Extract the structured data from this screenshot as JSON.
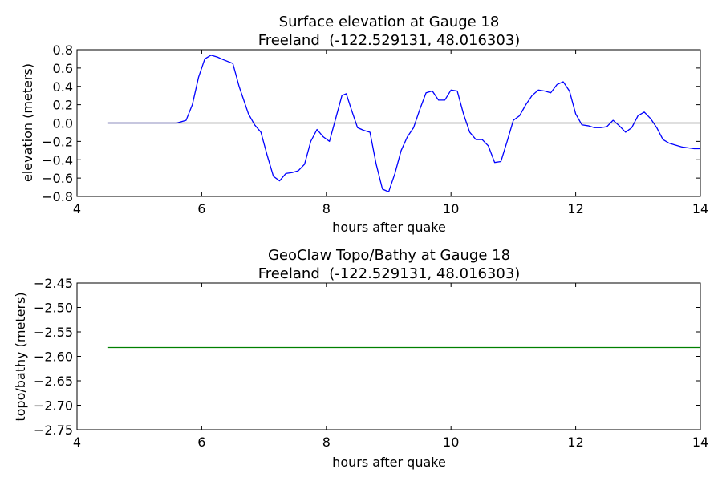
{
  "chart_data": [
    {
      "type": "line",
      "title": "Surface elevation at Gauge 18",
      "subtitle": "Freeland  (-122.529131, 48.016303)",
      "xlabel": "hours after quake",
      "ylabel": "elevation (meters)",
      "xlim": [
        4,
        14
      ],
      "ylim": [
        -0.8,
        0.8
      ],
      "xticks": [
        "4",
        "6",
        "8",
        "10",
        "12",
        "14"
      ],
      "yticks": [
        "0.8",
        "0.6",
        "0.4",
        "0.2",
        "0.0",
        "−0.2",
        "−0.4",
        "−0.6",
        "−0.8"
      ],
      "grid": false,
      "series": [
        {
          "color": "#0000ff",
          "x": [
            4.5,
            5.0,
            5.3,
            5.6,
            5.75,
            5.85,
            5.95,
            6.05,
            6.15,
            6.25,
            6.35,
            6.5,
            6.6,
            6.75,
            6.85,
            6.95,
            7.05,
            7.15,
            7.25,
            7.35,
            7.45,
            7.55,
            7.65,
            7.75,
            7.85,
            7.95,
            8.05,
            8.15,
            8.25,
            8.32,
            8.4,
            8.5,
            8.6,
            8.7,
            8.8,
            8.9,
            9.0,
            9.1,
            9.2,
            9.3,
            9.4,
            9.5,
            9.6,
            9.7,
            9.8,
            9.9,
            10.0,
            10.1,
            10.2,
            10.3,
            10.4,
            10.5,
            10.6,
            10.7,
            10.8,
            10.9,
            11.0,
            11.1,
            11.2,
            11.3,
            11.4,
            11.5,
            11.6,
            11.7,
            11.8,
            11.9,
            12.0,
            12.1,
            12.2,
            12.3,
            12.4,
            12.5,
            12.6,
            12.7,
            12.8,
            12.9,
            13.0,
            13.1,
            13.2,
            13.3,
            13.4,
            13.5,
            13.6,
            13.7,
            13.8,
            13.9,
            14.0
          ],
          "values": [
            0.0,
            0.0,
            0.0,
            0.0,
            0.03,
            0.2,
            0.5,
            0.7,
            0.74,
            0.72,
            0.69,
            0.65,
            0.4,
            0.1,
            -0.02,
            -0.1,
            -0.35,
            -0.58,
            -0.63,
            -0.55,
            -0.54,
            -0.52,
            -0.45,
            -0.2,
            -0.07,
            -0.15,
            -0.2,
            0.05,
            0.3,
            0.32,
            0.15,
            -0.05,
            -0.08,
            -0.1,
            -0.45,
            -0.72,
            -0.75,
            -0.55,
            -0.3,
            -0.15,
            -0.05,
            0.15,
            0.33,
            0.35,
            0.25,
            0.25,
            0.36,
            0.35,
            0.1,
            -0.1,
            -0.18,
            -0.18,
            -0.25,
            -0.43,
            -0.42,
            -0.2,
            0.03,
            0.08,
            0.2,
            0.3,
            0.36,
            0.35,
            0.33,
            0.42,
            0.45,
            0.35,
            0.1,
            -0.02,
            -0.03,
            -0.05,
            -0.05,
            -0.04,
            0.03,
            -0.03,
            -0.1,
            -0.05,
            0.08,
            0.12,
            0.05,
            -0.05,
            -0.18,
            -0.22,
            -0.24,
            -0.26,
            -0.27,
            -0.28,
            -0.28
          ]
        },
        {
          "color": "#000000",
          "x": [
            4.5,
            14.0
          ],
          "values": [
            0.0,
            0.0
          ]
        }
      ]
    },
    {
      "type": "line",
      "title": "GeoClaw Topo/Bathy at Gauge 18",
      "subtitle": "Freeland  (-122.529131, 48.016303)",
      "xlabel": "hours after quake",
      "ylabel": "topo/bathy (meters)",
      "xlim": [
        4,
        14
      ],
      "ylim": [
        -2.75,
        -2.45
      ],
      "xticks": [
        "4",
        "6",
        "8",
        "10",
        "12",
        "14"
      ],
      "yticks": [
        "−2.45",
        "−2.50",
        "−2.55",
        "−2.60",
        "−2.65",
        "−2.70",
        "−2.75"
      ],
      "grid": false,
      "series": [
        {
          "color": "#008000",
          "x": [
            4.5,
            14.0
          ],
          "values": [
            -2.582,
            -2.582
          ]
        }
      ]
    }
  ]
}
